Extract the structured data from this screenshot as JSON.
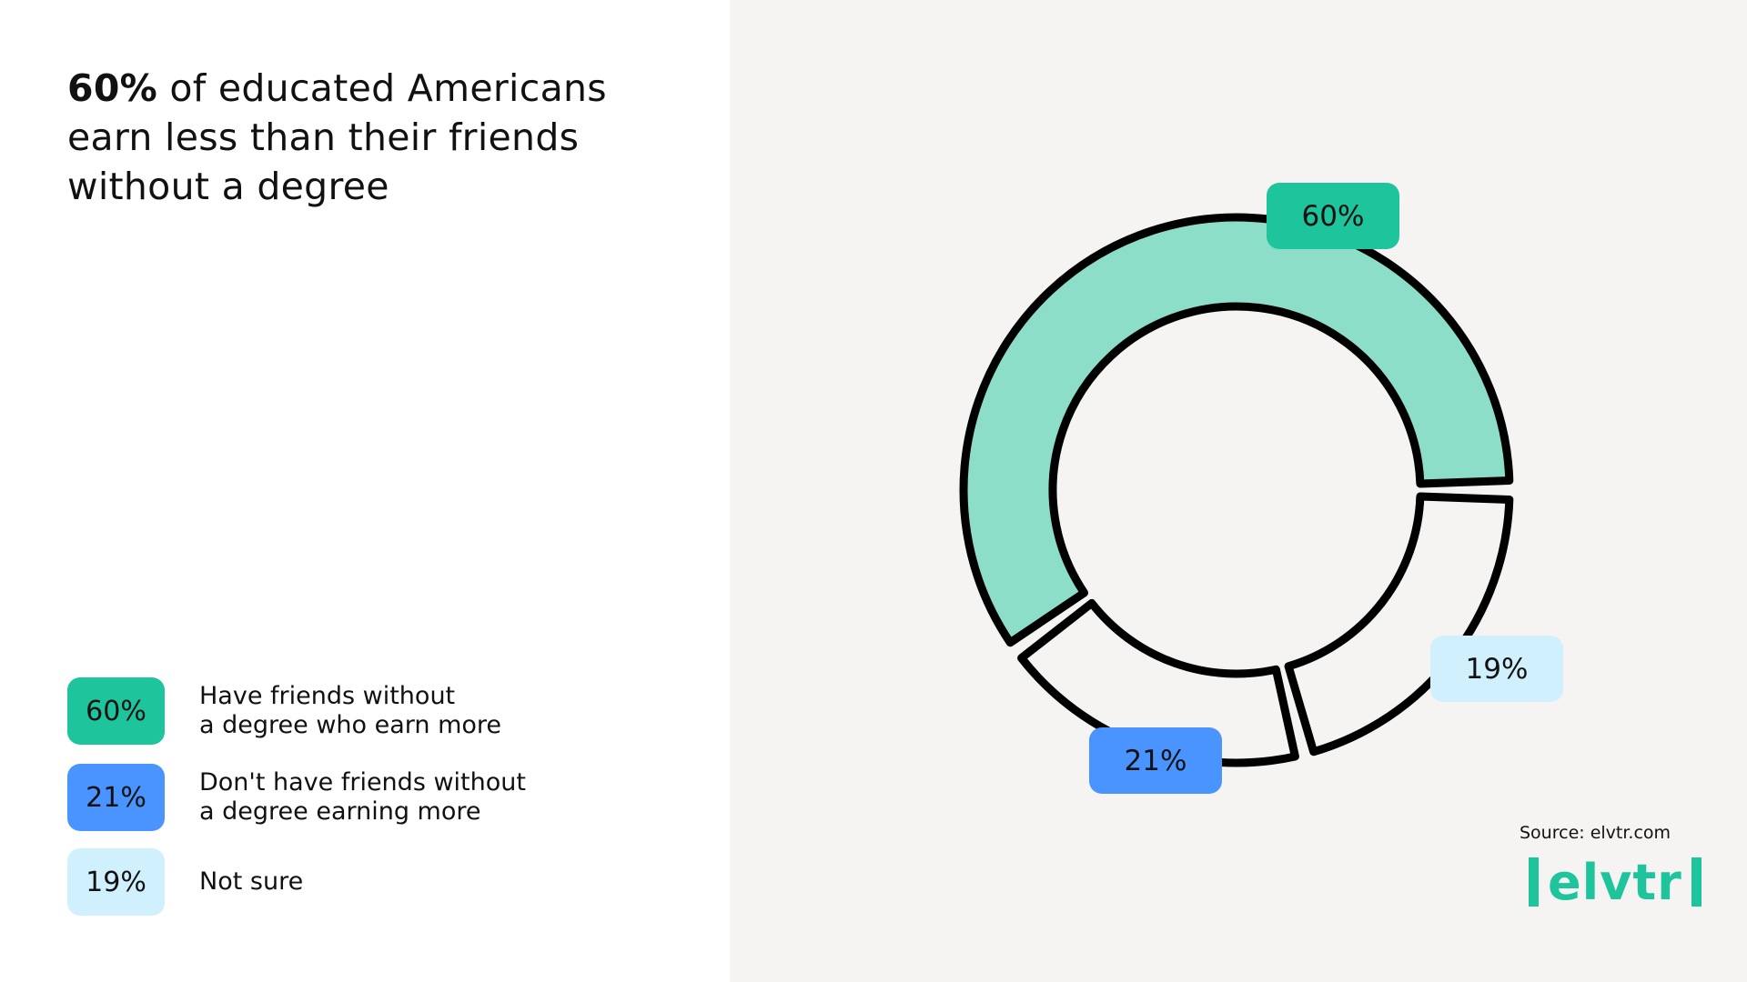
{
  "title": {
    "bold": "60%",
    "rest": " of educated Americans earn less than their friends without a degree"
  },
  "legend": [
    {
      "label": "60%",
      "text": "Have friends without\na degree who earn more",
      "color": "#1dc49c"
    },
    {
      "label": "21%",
      "text": "Don't have friends without\na degree earning more",
      "color": "#4a94ff"
    },
    {
      "label": "19%",
      "text": "Not sure",
      "color": "#d0f0fd"
    }
  ],
  "source": "Source: elvtr.com",
  "logo": "elvtr",
  "chart_data": {
    "type": "pie",
    "donut": true,
    "categories": [
      "Have friends without a degree who earn more",
      "Don't have friends without a degree earning more",
      "Not sure"
    ],
    "values": [
      60,
      21,
      19
    ],
    "labels": [
      "60%",
      "21%",
      "19%"
    ],
    "segment_fill": [
      "#8cdec8",
      "#f5f4f2",
      "#f5f4f2"
    ],
    "badge_colors": [
      "#1dc49c",
      "#4a94ff",
      "#d0f0fd"
    ]
  }
}
